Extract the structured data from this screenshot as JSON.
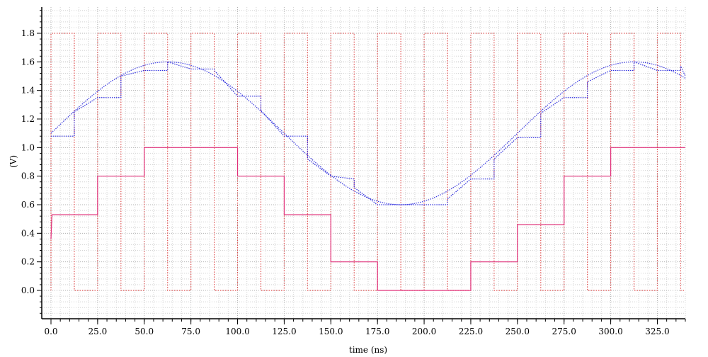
{
  "chart_data": {
    "type": "line",
    "xlabel": "time (ns)",
    "ylabel": "(V)",
    "xlim": [
      0,
      340
    ],
    "ylim": [
      -0.2,
      1.98
    ],
    "x_ticks": [
      0,
      25,
      50,
      75,
      100,
      125,
      150,
      175,
      200,
      225,
      250,
      275,
      300,
      325
    ],
    "x_tick_labels": [
      "0.0",
      "25.0",
      "50.0",
      "75.0",
      "100.0",
      "125.0",
      "150.0",
      "175.0",
      "200.0",
      "225.0",
      "250.0",
      "275.0",
      "300.0",
      "325.0"
    ],
    "y_ticks": [
      0,
      0.2,
      0.4,
      0.6,
      0.8,
      1.0,
      1.2,
      1.4,
      1.6,
      1.8
    ],
    "y_tick_labels": [
      "0.0",
      "0.2",
      "0.4",
      "0.6",
      "0.8",
      "1.0",
      "1.2",
      "1.4",
      "1.6",
      "1.8"
    ],
    "grid": true,
    "series": [
      {
        "kind": "clock",
        "color": "#e05050",
        "dash": "1.5,2",
        "low": 0.0,
        "high": 1.8,
        "period": 25,
        "high_start": 0,
        "high_end": 12.5,
        "x_end": 340
      },
      {
        "kind": "sine",
        "color": "#3a3adf",
        "dash": "1.5,1.5",
        "offset": 1.1,
        "amplitude": 0.5,
        "period": 250,
        "peak_at": 62.5,
        "x_end": 340
      },
      {
        "kind": "steps",
        "color": "#2d2ddd",
        "dash": "1.5,1.5",
        "points": [
          [
            0,
            1.08
          ],
          [
            12.5,
            1.08
          ],
          [
            12.5,
            1.25
          ],
          [
            25,
            1.35
          ],
          [
            37.5,
            1.35
          ],
          [
            37.5,
            1.5
          ],
          [
            50,
            1.54
          ],
          [
            62.5,
            1.54
          ],
          [
            62.5,
            1.6
          ],
          [
            75,
            1.55
          ],
          [
            87.5,
            1.55
          ],
          [
            87.5,
            1.54
          ],
          [
            100,
            1.36
          ],
          [
            112.5,
            1.36
          ],
          [
            112.5,
            1.26
          ],
          [
            125,
            1.08
          ],
          [
            137.5,
            1.08
          ],
          [
            137.5,
            0.92
          ],
          [
            150,
            0.8
          ],
          [
            162.5,
            0.78
          ],
          [
            162.5,
            0.72
          ],
          [
            175,
            0.6
          ],
          [
            187.5,
            0.6
          ],
          [
            200,
            0.6
          ],
          [
            212.5,
            0.6
          ],
          [
            212.5,
            0.64
          ],
          [
            225,
            0.78
          ],
          [
            237.5,
            0.78
          ],
          [
            237.5,
            0.92
          ],
          [
            250,
            1.07
          ],
          [
            262.5,
            1.07
          ],
          [
            262.5,
            1.24
          ],
          [
            275,
            1.35
          ],
          [
            287.5,
            1.35
          ],
          [
            287.5,
            1.46
          ],
          [
            300,
            1.54
          ],
          [
            312.5,
            1.54
          ],
          [
            312.5,
            1.6
          ],
          [
            325,
            1.54
          ],
          [
            337.5,
            1.54
          ],
          [
            337.5,
            1.57
          ],
          [
            340,
            1.5
          ]
        ]
      },
      {
        "kind": "steps",
        "color": "#e0307a",
        "dash": "",
        "points": [
          [
            0,
            0.36
          ],
          [
            0.5,
            0.53
          ],
          [
            25,
            0.53
          ],
          [
            25,
            0.8
          ],
          [
            50,
            0.8
          ],
          [
            50,
            1.0
          ],
          [
            100,
            1.0
          ],
          [
            100,
            0.8
          ],
          [
            125,
            0.8
          ],
          [
            125,
            0.53
          ],
          [
            150,
            0.53
          ],
          [
            150,
            0.2
          ],
          [
            175,
            0.2
          ],
          [
            175,
            0.0
          ],
          [
            225,
            0.0
          ],
          [
            225,
            0.2
          ],
          [
            250,
            0.2
          ],
          [
            250,
            0.46
          ],
          [
            275,
            0.46
          ],
          [
            275,
            0.8
          ],
          [
            300,
            0.8
          ],
          [
            300,
            1.0
          ],
          [
            340,
            1.0
          ]
        ]
      }
    ]
  }
}
